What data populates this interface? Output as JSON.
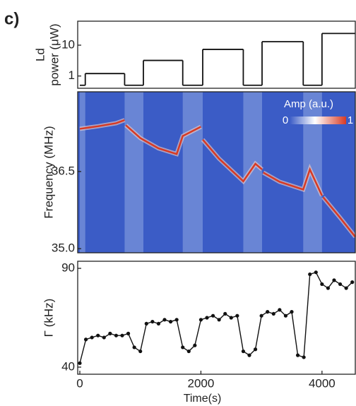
{
  "panel_label": "c)",
  "chart_data": [
    {
      "type": "step",
      "ylabel": [
        "Ld",
        "power (μW)"
      ],
      "ylog": true,
      "xlim": [
        -35,
        4550
      ],
      "ylim": [
        0.4,
        60
      ],
      "yticks": [
        1,
        10
      ],
      "series": [
        {
          "color": "#111111",
          "x": [
            0,
            90,
            740,
            1050,
            1700,
            2030,
            2700,
            3010,
            3690,
            4000
          ],
          "values": [
            0.5,
            1.2,
            0.5,
            3.2,
            0.5,
            7.3,
            0.5,
            13,
            0.5,
            24
          ]
        }
      ]
    },
    {
      "type": "line",
      "ylabel": "Frequency (MHz)",
      "xlim": [
        -35,
        4550
      ],
      "ylim": [
        34.92,
        38.05
      ],
      "yticks": [
        {
          "value": 35,
          "label": "35.0"
        },
        36.5
      ],
      "colorbar": {
        "label": "Amp (a.u.)",
        "ticks": [
          0,
          1
        ]
      },
      "background_color": "#3b5cc6",
      "band_color": "#7590d8",
      "series": [
        {
          "color": "#d83a24",
          "x": [
            0,
            300,
            600,
            740,
            750,
            760,
            1000,
            1300,
            1600,
            1700,
            2000,
            2015,
            2030,
            2300,
            2700,
            2900,
            3010,
            3020,
            3030,
            3300,
            3690,
            3800,
            4000,
            4010,
            4020,
            4300,
            4550
          ],
          "values": [
            37.33,
            37.38,
            37.44,
            37.5,
            null,
            37.4,
            37.15,
            36.95,
            36.84,
            37.19,
            37.37,
            null,
            37.12,
            36.75,
            36.31,
            36.65,
            36.54,
            null,
            36.48,
            36.3,
            36.15,
            36.54,
            36.03,
            null,
            36.0,
            35.6,
            35.23
          ]
        }
      ]
    },
    {
      "type": "line_markers",
      "ylabel": "Γ (kHz)",
      "xlabel": "Time(s)",
      "xlim": [
        -35,
        4550
      ],
      "ylim": [
        36.4,
        93.6
      ],
      "yticks": [
        40,
        90
      ],
      "xticks": [
        0,
        2000,
        4000
      ],
      "series": [
        {
          "color": "#111111",
          "x": [
            0,
            100,
            200,
            300,
            400,
            500,
            600,
            700,
            800,
            900,
            1000,
            1100,
            1200,
            1300,
            1400,
            1500,
            1600,
            1700,
            1800,
            1900,
            2000,
            2100,
            2200,
            2300,
            2400,
            2500,
            2600,
            2700,
            2800,
            2900,
            3000,
            3100,
            3200,
            3300,
            3400,
            3500,
            3600,
            3700,
            3800,
            3900,
            4000,
            4100,
            4200,
            4300,
            4400,
            4500
          ],
          "values": [
            42,
            54,
            55,
            56,
            55,
            57,
            56,
            56,
            57,
            50,
            48,
            62,
            63,
            62,
            64,
            63,
            64,
            50,
            48,
            51,
            64,
            65,
            66,
            64,
            67,
            65,
            66,
            48,
            46,
            49,
            66,
            68,
            67,
            69,
            66,
            68,
            46,
            45,
            87,
            88,
            82,
            80,
            84,
            82,
            80,
            83
          ]
        }
      ]
    }
  ]
}
